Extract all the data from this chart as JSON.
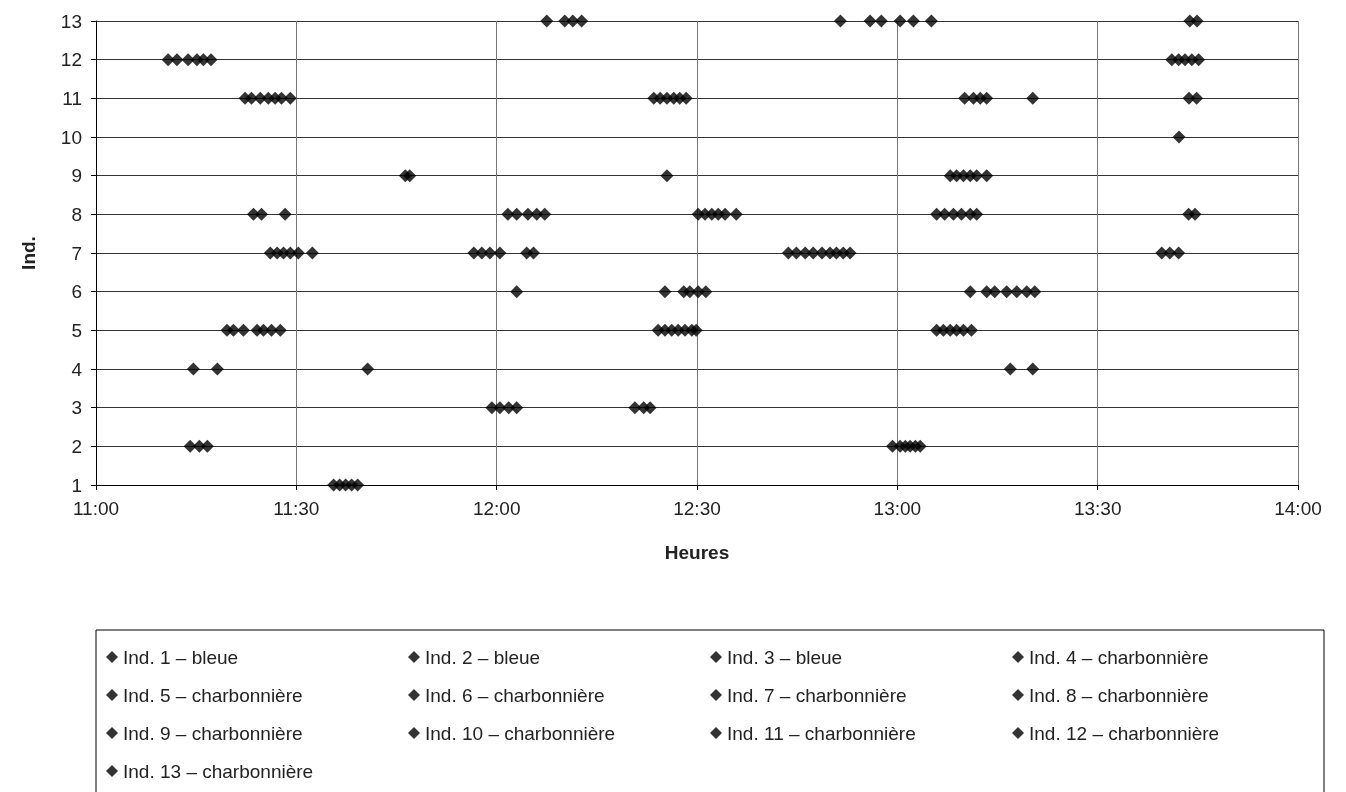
{
  "chart_data": {
    "type": "scatter",
    "xlabel": "Heures",
    "ylabel": "Ind.",
    "xlim": [
      11,
      14
    ],
    "xticks": [
      {
        "value": 11,
        "label": "11:00"
      },
      {
        "value": 11.5,
        "label": "11:30"
      },
      {
        "value": 12,
        "label": "12:00"
      },
      {
        "value": 12.5,
        "label": "12:30"
      },
      {
        "value": 13,
        "label": "13:00"
      },
      {
        "value": 13.5,
        "label": "13:30"
      },
      {
        "value": 14,
        "label": "14:00"
      }
    ],
    "ylim": [
      1,
      13
    ],
    "yticks": [
      1,
      2,
      3,
      4,
      5,
      6,
      7,
      8,
      9,
      10,
      11,
      12,
      13
    ],
    "grid": true,
    "legend": "bottom",
    "marker": "diamond",
    "series": [
      {
        "name": "Ind. 1 – bleue",
        "color": "#000000",
        "x": [
          11.593,
          11.608,
          11.623,
          11.638,
          11.653
        ],
        "values": [
          1,
          1,
          1,
          1,
          1
        ]
      },
      {
        "name": "Ind. 2 – bleue",
        "color": "#000000",
        "x": [
          11.235,
          11.258,
          11.278,
          12.988,
          13.007,
          13.02,
          13.032,
          13.045,
          13.057
        ],
        "values": [
          2,
          2,
          2,
          2,
          2,
          2,
          2,
          2,
          2
        ]
      },
      {
        "name": "Ind. 3 – bleue",
        "color": "#000000",
        "x": [
          11.988,
          12.008,
          12.03,
          12.05,
          12.345,
          12.367,
          12.383
        ],
        "values": [
          3,
          3,
          3,
          3,
          3,
          3,
          3
        ]
      },
      {
        "name": "Ind. 4 – charbonnière",
        "color": "#000000",
        "x": [
          11.243,
          11.303,
          11.678,
          13.282,
          13.338
        ],
        "values": [
          4,
          4,
          4,
          4,
          4
        ]
      },
      {
        "name": "Ind. 5 – charbonnière",
        "color": "#000000",
        "x": [
          11.327,
          11.343,
          11.368,
          11.402,
          11.418,
          11.438,
          11.46,
          12.403,
          12.42,
          12.437,
          12.453,
          12.47,
          12.487,
          12.498,
          13.098,
          13.115,
          13.132,
          13.148,
          13.165,
          13.185
        ],
        "values": [
          5,
          5,
          5,
          5,
          5,
          5,
          5,
          5,
          5,
          5,
          5,
          5,
          5,
          5,
          5,
          5,
          5,
          5,
          5,
          5
        ]
      },
      {
        "name": "Ind. 6 – charbonnière",
        "color": "#000000",
        "x": [
          12.05,
          12.42,
          12.467,
          12.482,
          12.503,
          12.522,
          13.182,
          13.223,
          13.243,
          13.273,
          13.298,
          13.323,
          13.343
        ],
        "values": [
          6,
          6,
          6,
          6,
          6,
          6,
          6,
          6,
          6,
          6,
          6,
          6,
          6
        ]
      },
      {
        "name": "Ind. 7 – charbonnière",
        "color": "#000000",
        "x": [
          11.435,
          11.452,
          11.468,
          11.485,
          11.505,
          11.54,
          11.943,
          11.963,
          11.983,
          12.008,
          12.075,
          12.092,
          12.728,
          12.748,
          12.77,
          12.79,
          12.812,
          12.832,
          12.848,
          12.865,
          12.882,
          13.66,
          13.68,
          13.702
        ],
        "values": [
          7,
          7,
          7,
          7,
          7,
          7,
          7,
          7,
          7,
          7,
          7,
          7,
          7,
          7,
          7,
          7,
          7,
          7,
          7,
          7,
          7,
          7,
          7,
          7
        ]
      },
      {
        "name": "Ind. 8 – charbonnière",
        "color": "#000000",
        "x": [
          11.393,
          11.413,
          11.472,
          12.028,
          12.05,
          12.078,
          12.1,
          12.12,
          12.503,
          12.52,
          12.537,
          12.553,
          12.57,
          12.598,
          13.098,
          13.118,
          13.14,
          13.16,
          13.182,
          13.198,
          13.727,
          13.743
        ],
        "values": [
          8,
          8,
          8,
          8,
          8,
          8,
          8,
          8,
          8,
          8,
          8,
          8,
          8,
          8,
          8,
          8,
          8,
          8,
          8,
          8,
          8,
          8
        ]
      },
      {
        "name": "Ind. 9 – charbonnière",
        "color": "#000000",
        "x": [
          11.772,
          11.783,
          12.425,
          13.132,
          13.148,
          13.165,
          13.182,
          13.198,
          13.223
        ],
        "values": [
          9,
          9,
          9,
          9,
          9,
          9,
          9,
          9,
          9
        ]
      },
      {
        "name": "Ind. 10 – charbonnière",
        "color": "#000000",
        "x": [
          13.703
        ],
        "values": [
          10
        ]
      },
      {
        "name": "Ind. 11 – charbonnière",
        "color": "#000000",
        "x": [
          11.372,
          11.388,
          11.41,
          11.43,
          11.447,
          11.463,
          11.485,
          12.392,
          12.408,
          12.425,
          12.442,
          12.457,
          12.473,
          13.168,
          13.19,
          13.207,
          13.223,
          13.338,
          13.728,
          13.747
        ],
        "values": [
          11,
          11,
          11,
          11,
          11,
          11,
          11,
          11,
          11,
          11,
          11,
          11,
          11,
          11,
          11,
          11,
          11,
          11,
          11,
          11
        ]
      },
      {
        "name": "Ind. 12 – charbonnière",
        "color": "#000000",
        "x": [
          11.18,
          11.202,
          11.23,
          11.252,
          11.268,
          11.287,
          13.685,
          13.702,
          13.718,
          13.735,
          13.752
        ],
        "values": [
          12,
          12,
          12,
          12,
          12,
          12,
          12,
          12,
          12,
          12,
          12
        ]
      },
      {
        "name": "Ind. 13 – charbonnière",
        "color": "#000000",
        "x": [
          12.125,
          12.17,
          12.19,
          12.212,
          12.858,
          12.932,
          12.96,
          13.007,
          13.04,
          13.085,
          13.73,
          13.748
        ],
        "values": [
          13,
          13,
          13,
          13,
          13,
          13,
          13,
          13,
          13,
          13,
          13,
          13
        ]
      }
    ]
  }
}
